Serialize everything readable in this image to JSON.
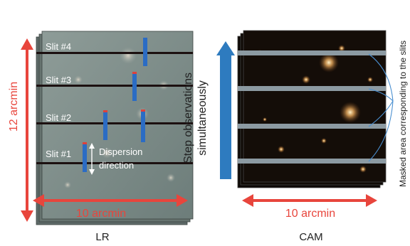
{
  "lr_panel": {
    "caption": "LR",
    "height_label": "12 arcmin",
    "width_label": "10 arcmin",
    "slits": [
      "Slit #4",
      "Slit #3",
      "Slit #2",
      "Slit #1"
    ],
    "dispersion_label_line1": "Dispersion",
    "dispersion_label_line2": "direction"
  },
  "step_label_line1": "Step observations",
  "step_label_line2": "simultaneously",
  "cam_panel": {
    "caption": "CAM",
    "width_label": "10 arcmin",
    "mask_label": "Masked area corresponding to the slits"
  },
  "colors": {
    "red_arrow": "#e8453c",
    "blue_arrow": "#2e7bbf",
    "slit_marker": "#2b6cc4",
    "slit_tip": "#e0403a",
    "lr_image": "#7a8a86",
    "cam_image": "#120c08",
    "mask_band": "#8c9aa2"
  }
}
